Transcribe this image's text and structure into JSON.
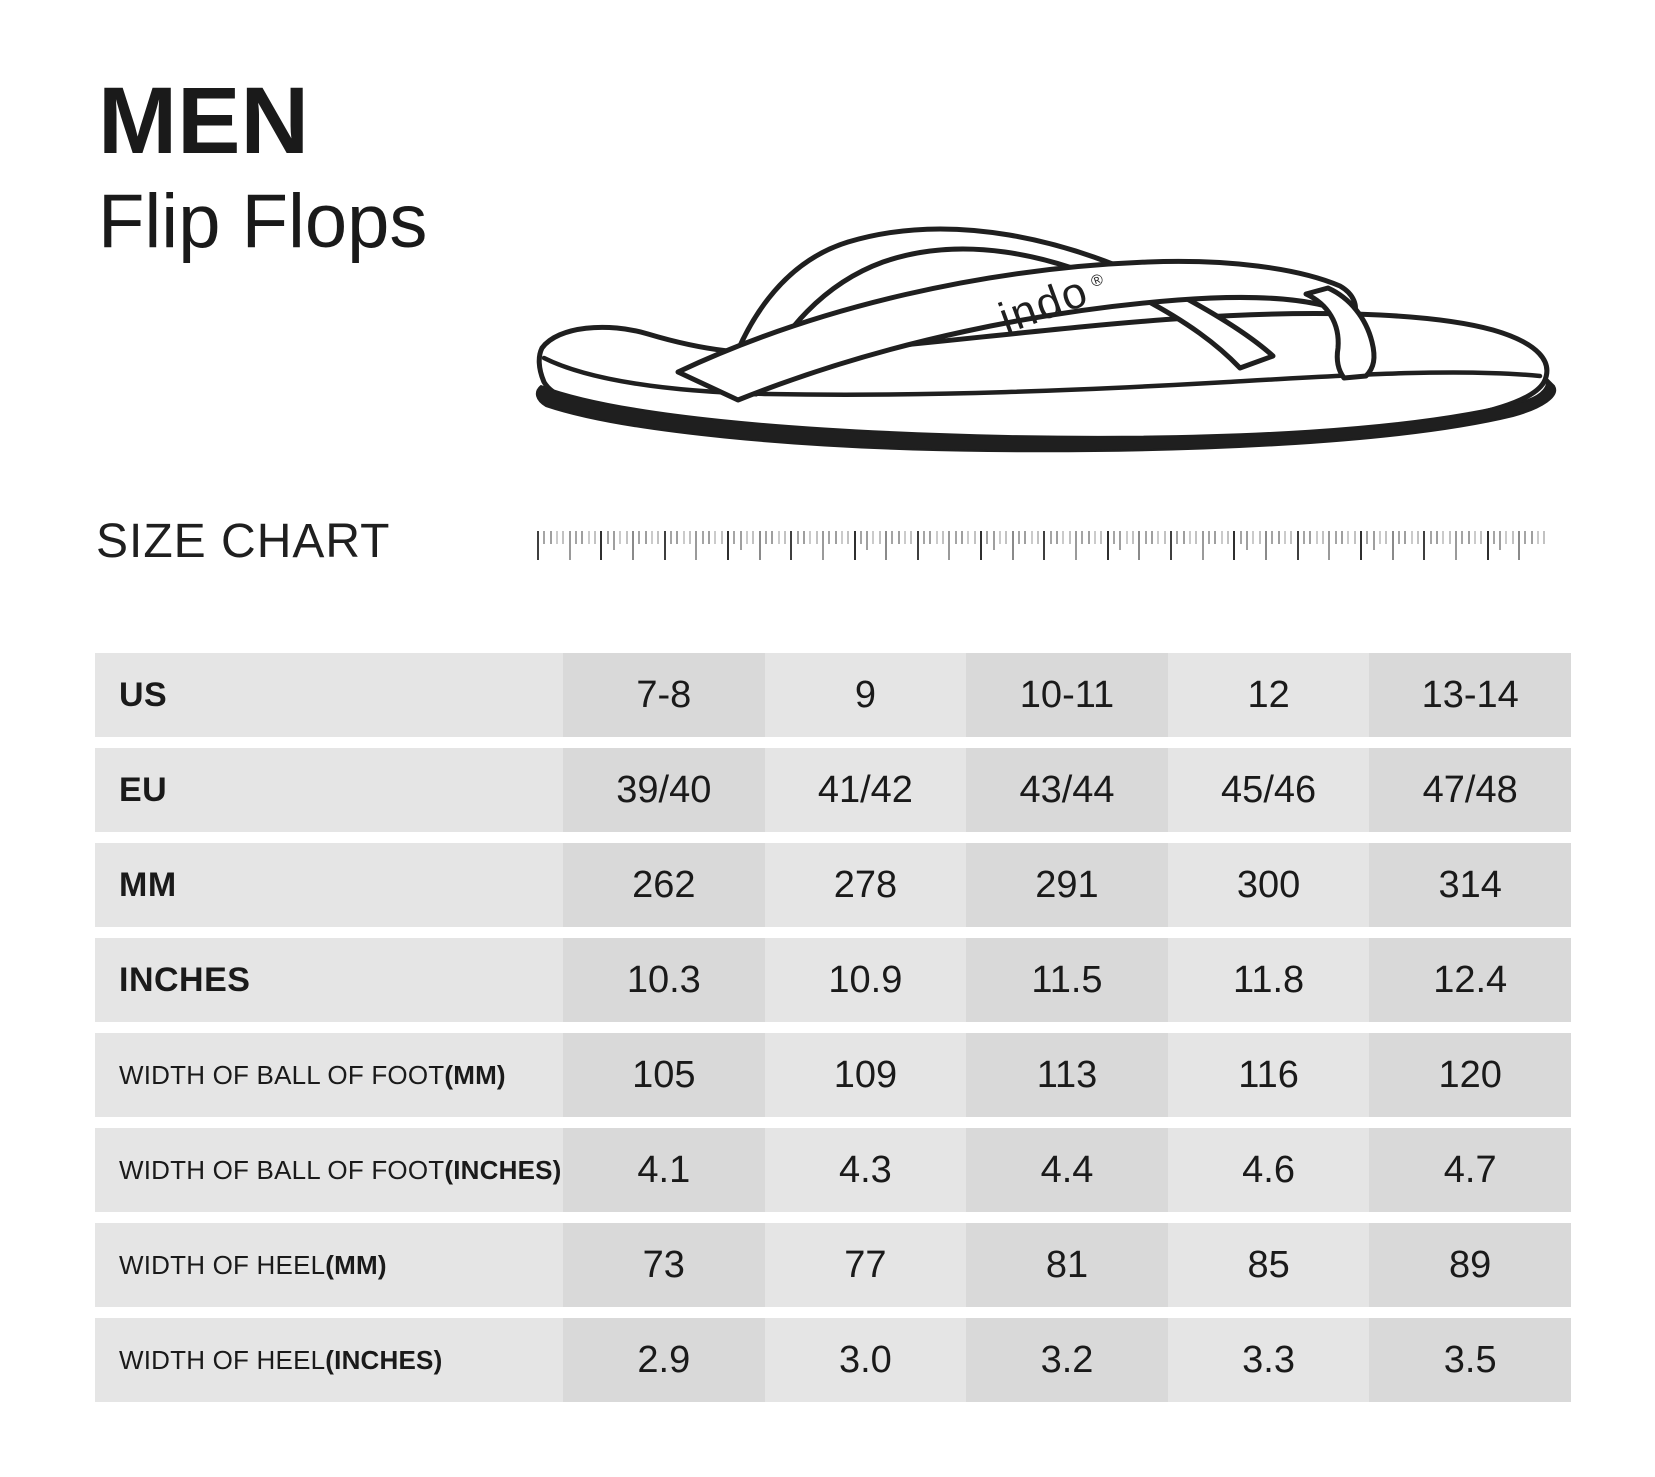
{
  "header": {
    "title": "MEN",
    "subtitle": "Flip Flops"
  },
  "illustration": {
    "brand": "indo",
    "registered_mark": "®"
  },
  "size_chart": {
    "heading": "SIZE CHART"
  },
  "colors": {
    "cell_light": "#e5e5e5",
    "cell_dark": "#d9d9d9",
    "ink": "#1f1f1f",
    "background": "#ffffff"
  },
  "table": {
    "rows": [
      {
        "label": "US",
        "suffix": "",
        "style": "large",
        "values": [
          "7-8",
          "9",
          "10-11",
          "12",
          "13-14"
        ]
      },
      {
        "label": "EU",
        "suffix": "",
        "style": "large",
        "values": [
          "39/40",
          "41/42",
          "43/44",
          "45/46",
          "47/48"
        ]
      },
      {
        "label": "MM",
        "suffix": "",
        "style": "large",
        "values": [
          "262",
          "278",
          "291",
          "300",
          "314"
        ]
      },
      {
        "label": "INCHES",
        "suffix": "",
        "style": "large",
        "values": [
          "10.3",
          "10.9",
          "11.5",
          "11.8",
          "12.4"
        ]
      },
      {
        "label": "WIDTH OF BALL OF FOOT ",
        "suffix": "(MM)",
        "style": "small",
        "values": [
          "105",
          "109",
          "113",
          "116",
          "120"
        ]
      },
      {
        "label": "WIDTH OF BALL OF FOOT ",
        "suffix": "(INCHES)",
        "style": "small",
        "values": [
          "4.1",
          "4.3",
          "4.4",
          "4.6",
          "4.7"
        ]
      },
      {
        "label": "WIDTH OF HEEL ",
        "suffix": "(MM)",
        "style": "small",
        "values": [
          "73",
          "77",
          "81",
          "85",
          "89"
        ]
      },
      {
        "label": "WIDTH OF HEEL ",
        "suffix": "(INCHES)",
        "style": "small",
        "values": [
          "2.9",
          "3.0",
          "3.2",
          "3.3",
          "3.5"
        ]
      }
    ]
  },
  "chart_data": {
    "type": "table",
    "title": "SIZE CHART",
    "subtitle": "MEN Flip Flops",
    "row_headers": [
      "US",
      "EU",
      "MM",
      "INCHES",
      "WIDTH OF BALL OF FOOT (MM)",
      "WIDTH OF BALL OF FOOT (INCHES)",
      "WIDTH OF HEEL (MM)",
      "WIDTH OF HEEL (INCHES)"
    ],
    "rows": [
      [
        "7-8",
        "9",
        "10-11",
        "12",
        "13-14"
      ],
      [
        "39/40",
        "41/42",
        "43/44",
        "45/46",
        "47/48"
      ],
      [
        "262",
        "278",
        "291",
        "300",
        "314"
      ],
      [
        "10.3",
        "10.9",
        "11.5",
        "11.8",
        "12.4"
      ],
      [
        "105",
        "109",
        "113",
        "116",
        "120"
      ],
      [
        "4.1",
        "4.3",
        "4.4",
        "4.6",
        "4.7"
      ],
      [
        "73",
        "77",
        "81",
        "85",
        "89"
      ],
      [
        "2.9",
        "3.0",
        "3.2",
        "3.3",
        "3.5"
      ]
    ]
  }
}
